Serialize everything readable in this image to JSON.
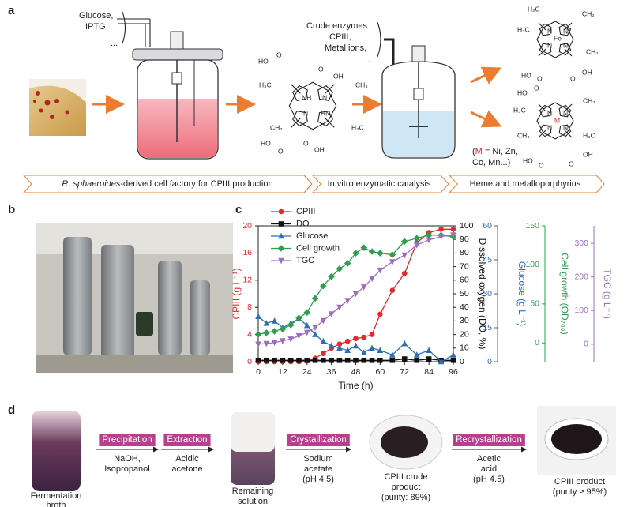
{
  "panel_a": {
    "label": "a",
    "reactor1_inputs": [
      "Glucose,",
      "IPTG",
      "..."
    ],
    "reactor2_inputs": [
      "Crude enzymes",
      "CPIII,",
      "Metal ions,",
      "..."
    ],
    "cpiii_atoms": [
      "HO",
      "O",
      "O",
      "OH",
      "H₃C",
      "CH₃",
      "NH",
      "N",
      "N",
      "HN",
      "CH₃",
      "H₃C",
      "HO",
      "O",
      "O",
      "OH"
    ],
    "heme_atoms": [
      "H₂C",
      "CH₃",
      "H₃C",
      "CH₃",
      "N",
      "N",
      "Fe",
      "N",
      "N",
      "HO",
      "O",
      "O",
      "OH"
    ],
    "metallo_atoms": [
      "HO",
      "O",
      "CH₃",
      "H₃C",
      "N",
      "N",
      "M",
      "N",
      "N",
      "CH₃",
      "H₃C",
      "HO",
      "O",
      "O",
      "OH"
    ],
    "metal_note": [
      "(",
      "M",
      " = Ni, Zn,",
      "Co, Mn...)"
    ],
    "banner1_italic": "R. sphaeroides",
    "banner1_rest": "-derived cell factory for CPIII production",
    "banner2": "In vitro enzymatic catalysis",
    "banner3": "Heme and metalloporphyrins"
  },
  "panel_b": {
    "label": "b"
  },
  "panel_c": {
    "label": "c"
  },
  "chart_data": {
    "type": "line",
    "xlabel": "Time (h)",
    "ylabel": "CPIII (g L⁻¹)",
    "y2label": "Dissolved oxygen (DO, %)",
    "y3label": "Glucose (g L⁻¹)",
    "y4label": "Cell growth (OD₇₀₀)",
    "y5label": "TGC (g L⁻¹)",
    "x": [
      0,
      4,
      8,
      12,
      16,
      20,
      24,
      28,
      32,
      36,
      40,
      44,
      48,
      52,
      56,
      60,
      66,
      72,
      78,
      84,
      90,
      96
    ],
    "xlim": [
      0,
      96
    ],
    "xticks": [
      0,
      12,
      24,
      36,
      48,
      60,
      72,
      84,
      96
    ],
    "ylim": [
      0,
      20
    ],
    "yticks": [
      0,
      4,
      8,
      12,
      16,
      20
    ],
    "y2lim": [
      0,
      100
    ],
    "y2ticks": [
      0,
      10,
      20,
      30,
      40,
      50,
      60,
      70,
      80,
      90,
      100
    ],
    "y3lim": [
      0,
      60
    ],
    "y3ticks": [
      0,
      15,
      30,
      45,
      60
    ],
    "y4lim": [
      -24,
      150
    ],
    "y4ticks": [
      0,
      50,
      100,
      150
    ],
    "y5lim": [
      -52,
      352
    ],
    "y5ticks": [
      0,
      100,
      200,
      300
    ],
    "legend": "upper left",
    "series": [
      {
        "name": "CPIII",
        "color": "#e8262b",
        "marker": "circle",
        "axis": "y",
        "values": [
          0,
          0,
          0,
          0,
          0,
          0,
          0.1,
          0.5,
          1.2,
          2,
          2.6,
          3,
          3.4,
          3.6,
          4,
          7,
          10.5,
          13,
          17.5,
          19,
          19.5,
          19.5
        ]
      },
      {
        "name": "DO",
        "color": "#111111",
        "marker": "square",
        "axis": "y2",
        "values": [
          1,
          1,
          1,
          1,
          1,
          1,
          1,
          1,
          1,
          1,
          1,
          1,
          1,
          1,
          1,
          1,
          1,
          2,
          1,
          2,
          1,
          1
        ]
      },
      {
        "name": "Glucose",
        "color": "#2f6db5",
        "marker": "triangle-up",
        "axis": "y3",
        "values": [
          20,
          17,
          18,
          15,
          17,
          19,
          16,
          12,
          9,
          7,
          6,
          5,
          7,
          4,
          6,
          5,
          3,
          8,
          3,
          5,
          0,
          3
        ]
      },
      {
        "name": "Cell growth",
        "color": "#2e9e4f",
        "marker": "diamond",
        "axis": "y4",
        "values": [
          11,
          13,
          15,
          18,
          23,
          32,
          39,
          57,
          73,
          85,
          95,
          102,
          115,
          122,
          117,
          115,
          113,
          130,
          134,
          138,
          138,
          136
        ]
      },
      {
        "name": "TGC",
        "color": "#9b6fc0",
        "marker": "triangle-down",
        "axis": "y5",
        "values": [
          0,
          2,
          5,
          10,
          15,
          25,
          35,
          50,
          70,
          90,
          110,
          130,
          150,
          170,
          195,
          220,
          245,
          265,
          295,
          310,
          320,
          325
        ]
      }
    ]
  },
  "panel_d": {
    "label": "d",
    "step_boxes": [
      "Precipitation",
      "Extraction",
      "Crystallization",
      "Recrystallization"
    ],
    "step_reagents": [
      [
        "NaOH,",
        "Isopropanol"
      ],
      [
        "Acidic",
        "acetone"
      ],
      [
        "Sodium",
        "acetate",
        "(pH 4.5)"
      ],
      [
        "Acetic",
        "acid",
        "(pH 4.5)"
      ]
    ],
    "photo_captions": [
      [
        "Fermentation",
        "broth"
      ],
      [
        "Remaining",
        "solution"
      ],
      [
        "CPIII crude",
        "product",
        "(purity: 89%)"
      ],
      [
        "CPIII product",
        "(purity ≥ 95%)"
      ]
    ]
  }
}
